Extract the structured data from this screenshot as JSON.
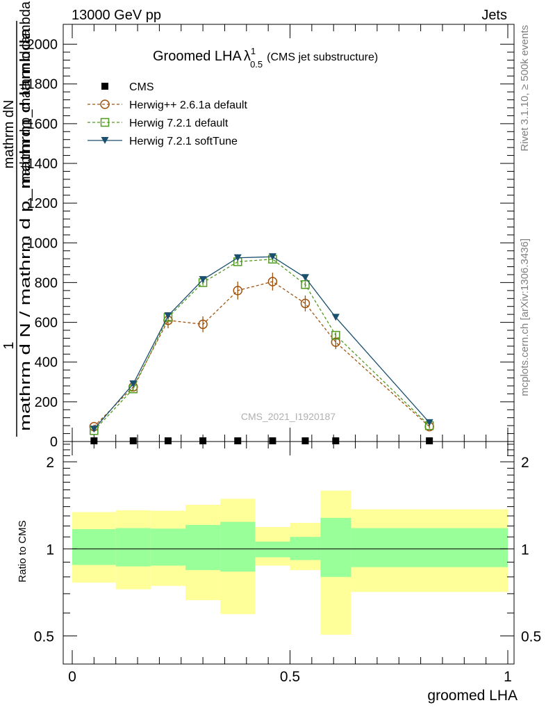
{
  "header": {
    "left": "13000 GeV pp",
    "right": "Jets"
  },
  "side_labels": {
    "rivet": "Rivet 3.1.10, ≥ 500k events",
    "mcplots": "mcplots.cern.ch [arXiv:1306.3436]"
  },
  "watermark": "CMS_2021_I1920187",
  "ylabel_main": {
    "numerator_one": "1",
    "numerator_two": "mathrm dN",
    "denominator_one": "mathrm d N / mathrm d p_mathrm d lambda",
    "denominator_two": "mathrm d p_mathrm d lambda"
  },
  "chart_data": [
    {
      "type": "line",
      "panel": "main",
      "title_main": "Groomed LHA",
      "title_symbol": "λ",
      "title_sup": "1",
      "title_sub": "0.5",
      "title_note": "(CMS jet substructure)",
      "xlim": [
        0,
        1
      ],
      "ylim": [
        0,
        2100
      ],
      "yticks": [
        0,
        200,
        400,
        600,
        800,
        1000,
        1200,
        1400,
        1600,
        1800,
        2000
      ],
      "yticklabels": [
        "0",
        "200",
        "400",
        "600",
        "800",
        "1000",
        "1200",
        "1400",
        "1600",
        "1800",
        "2000"
      ],
      "legend_position": "top-left",
      "x": [
        0.05,
        0.14,
        0.22,
        0.3,
        0.38,
        0.46,
        0.535,
        0.605,
        0.82
      ],
      "series": [
        {
          "name": "CMS",
          "color": "#000000",
          "marker": "filled-square",
          "values": [
            0,
            0,
            0,
            0,
            0,
            0,
            0,
            0,
            0
          ]
        },
        {
          "name": "Herwig++ 2.6.1a default",
          "color": "#a0510a",
          "marker": "open-circle",
          "dashed": true,
          "values": [
            75,
            275,
            610,
            590,
            760,
            805,
            695,
            500,
            75
          ],
          "errors": [
            10,
            20,
            40,
            40,
            45,
            45,
            40,
            35,
            10
          ]
        },
        {
          "name": "Herwig 7.2.1 default",
          "color": "#4f9a1c",
          "marker": "open-square",
          "dashed": true,
          "values": [
            55,
            265,
            625,
            800,
            905,
            918,
            790,
            535,
            80
          ],
          "errors": [
            5,
            10,
            15,
            15,
            15,
            15,
            15,
            15,
            5
          ]
        },
        {
          "name": "Herwig 7.2.1 softTune",
          "color": "#1b4f6e",
          "marker": "filled-triangle-down",
          "dashed": false,
          "values": [
            62,
            290,
            633,
            815,
            925,
            930,
            825,
            625,
            95
          ],
          "errors": [
            5,
            10,
            10,
            10,
            10,
            10,
            10,
            10,
            5
          ]
        }
      ]
    },
    {
      "type": "area",
      "panel": "ratio",
      "ylabel": "Ratio to CMS",
      "xlabel": "groomed LHA",
      "xlim": [
        0,
        1
      ],
      "ylim": [
        0.4,
        2.35
      ],
      "scale": "log",
      "yticks": [
        0.5,
        1,
        2
      ],
      "yticklabels": [
        "0.5",
        "1",
        "2"
      ],
      "xticks": [
        0,
        0.5,
        1
      ],
      "xticklabels": [
        "0",
        "0.5",
        "1"
      ],
      "bins": [
        0,
        0.1,
        0.18,
        0.26,
        0.34,
        0.42,
        0.5,
        0.57,
        0.64,
        1.0
      ],
      "band_stat": {
        "name": "stat",
        "color": "#99ff99",
        "lower": [
          0.88,
          0.87,
          0.875,
          0.845,
          0.835,
          0.935,
          0.915,
          0.8,
          0.865
        ],
        "upper": [
          1.17,
          1.18,
          1.175,
          1.21,
          1.24,
          1.06,
          1.1,
          1.28,
          1.18
        ]
      },
      "band_total": {
        "name": "total",
        "color": "#ffff99",
        "lower": [
          0.765,
          0.725,
          0.745,
          0.665,
          0.595,
          0.875,
          0.845,
          0.505,
          0.71
        ],
        "upper": [
          1.34,
          1.36,
          1.355,
          1.42,
          1.49,
          1.19,
          1.23,
          1.59,
          1.37
        ]
      },
      "reference_value": 1
    }
  ]
}
